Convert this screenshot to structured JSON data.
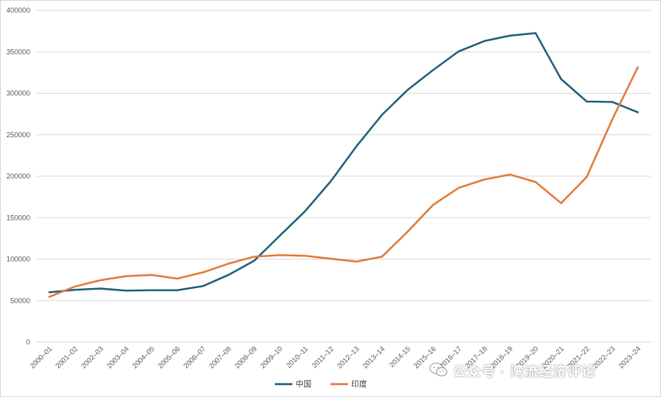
{
  "chart_data": {
    "type": "line",
    "categories": [
      "2000–01",
      "2001–02",
      "2002–03",
      "2003–04",
      "2004–05",
      "2005–06",
      "2006–07",
      "2007–08",
      "2008–09",
      "2009–10",
      "2010–11",
      "2011–12",
      "2012–13",
      "2013–14",
      "2014-15",
      "2015–16",
      "2016–17",
      "2017–18",
      "2018–19",
      "2019–20",
      "2020–21",
      "2021–22",
      "2022–23",
      "2023–24"
    ],
    "series": [
      {
        "name": "中国",
        "color": "#1f5f7a",
        "values": [
          60000,
          63000,
          64500,
          62000,
          62500,
          62500,
          67500,
          81000,
          98000,
          128000,
          158000,
          194000,
          236000,
          274000,
          304000,
          328000,
          350500,
          363000,
          369500,
          372500,
          317000,
          290000,
          289500,
          277000
        ]
      },
      {
        "name": "印度",
        "color": "#e07b39",
        "values": [
          54500,
          67000,
          74500,
          79500,
          81000,
          76500,
          84000,
          94500,
          103000,
          104900,
          104000,
          100500,
          97000,
          103000,
          133000,
          165500,
          186000,
          196000,
          202000,
          193000,
          167500,
          199000,
          268500,
          331500
        ]
      }
    ],
    "ylim": [
      0,
      400000
    ],
    "yticks": [
      "0",
      "50000",
      "100000",
      "150000",
      "200000",
      "250000",
      "300000",
      "350000",
      "400000"
    ],
    "grid": true,
    "legend_position": "bottom"
  },
  "watermark": {
    "text": "公众号 · 湾流经济评论",
    "icon": "wechat-icon"
  }
}
